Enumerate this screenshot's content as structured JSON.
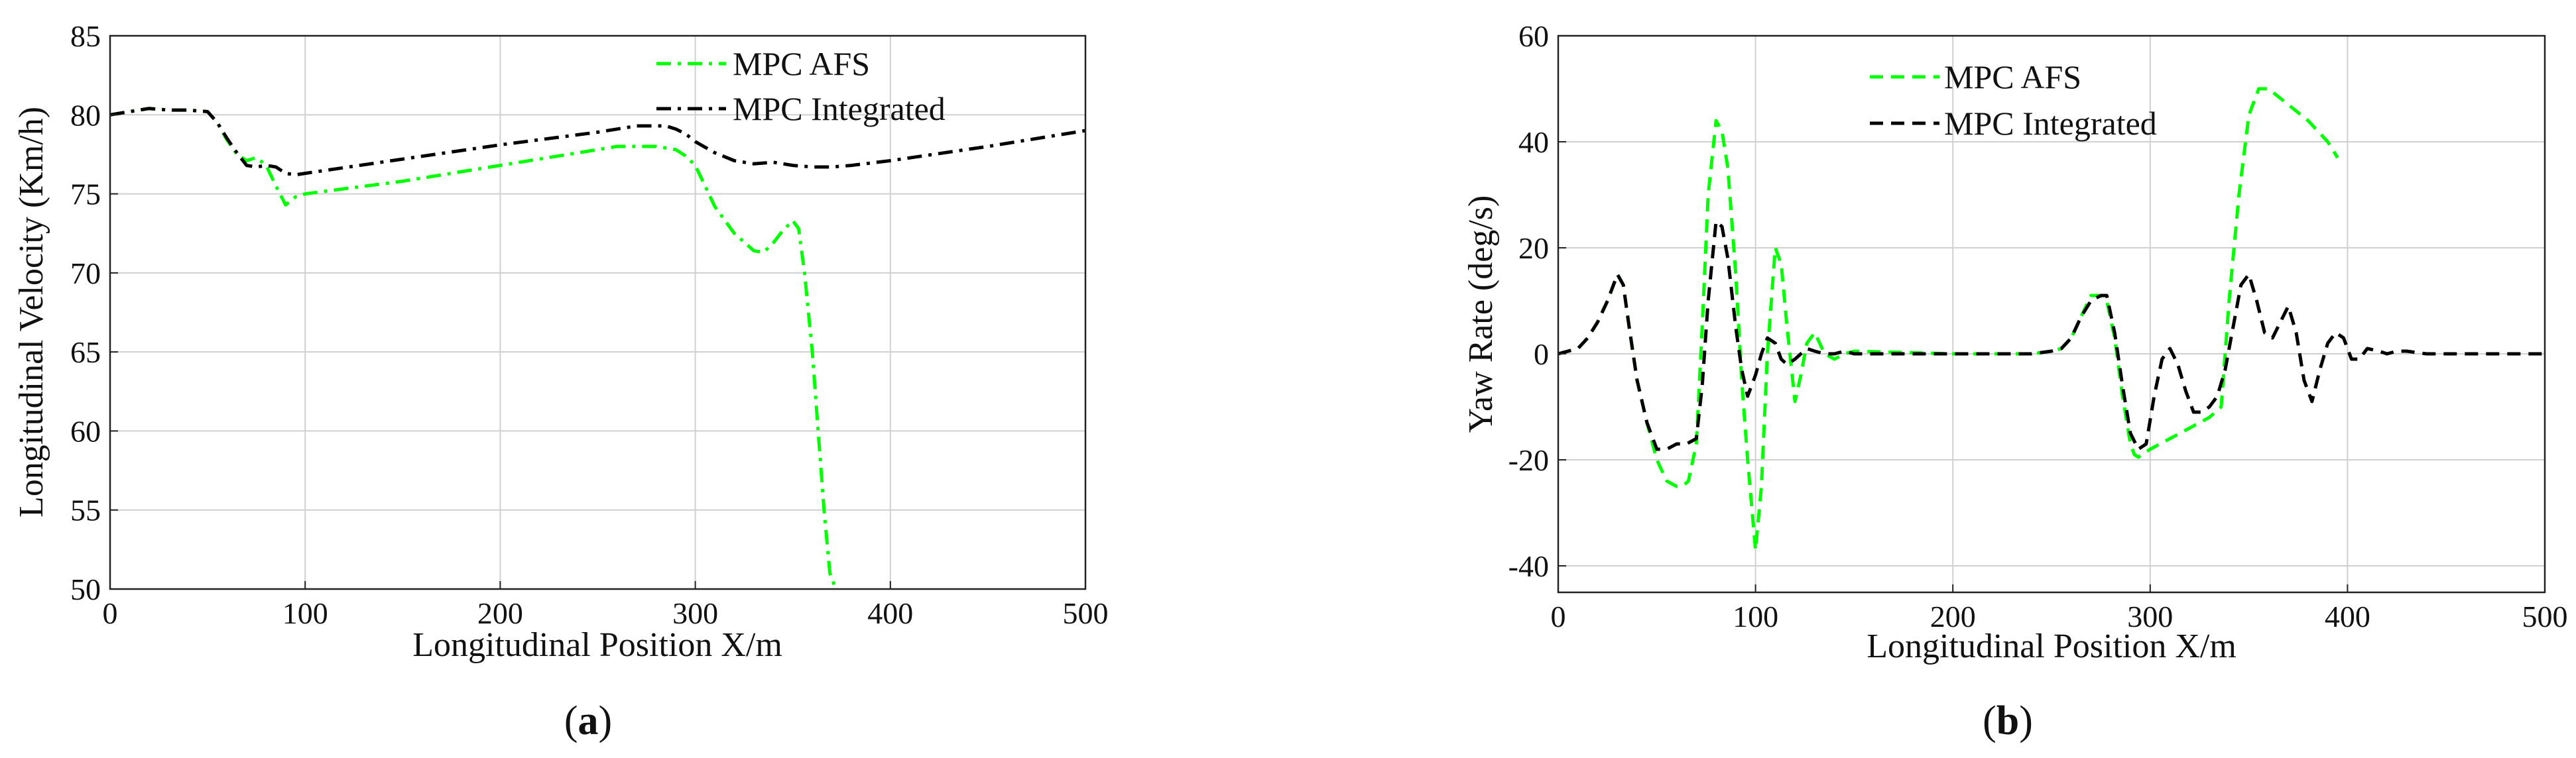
{
  "chart_data": [
    {
      "type": "line",
      "panel_label": "a",
      "xlabel": "Longitudinal Position X/m",
      "ylabel": "Longitudinal Velocity (Km/h)",
      "xlim": [
        0,
        500
      ],
      "ylim": [
        50,
        85
      ],
      "xticks": [
        0,
        100,
        200,
        300,
        400,
        500
      ],
      "yticks": [
        50,
        55,
        60,
        65,
        70,
        75,
        80,
        85
      ],
      "grid": true,
      "legend_position": "top-right",
      "series": [
        {
          "name": "MPC AFS",
          "color": "#00ff00",
          "dash": "dash-dot",
          "x": [
            0,
            10,
            20,
            30,
            40,
            50,
            55,
            60,
            65,
            70,
            75,
            80,
            85,
            90,
            95,
            100,
            150,
            200,
            250,
            260,
            270,
            280,
            290,
            295,
            300,
            305,
            310,
            320,
            330,
            335,
            340,
            345,
            350,
            353,
            356,
            360,
            363,
            366,
            369,
            372
          ],
          "y": [
            80,
            80.2,
            80.4,
            80.3,
            80.3,
            80.2,
            79.5,
            78.4,
            77.5,
            77.1,
            77.3,
            76.8,
            75.5,
            74.3,
            74.8,
            75,
            75.8,
            76.8,
            77.8,
            78,
            78,
            78,
            77.8,
            77.4,
            76.8,
            75.5,
            74.2,
            72.5,
            71.4,
            71.3,
            71.9,
            72.7,
            73.3,
            72.8,
            70,
            65,
            60,
            55,
            51,
            50
          ]
        },
        {
          "name": "MPC Integrated",
          "color": "#000000",
          "dash": "dash-dot",
          "x": [
            0,
            10,
            20,
            30,
            40,
            50,
            55,
            60,
            65,
            70,
            75,
            80,
            85,
            90,
            95,
            100,
            150,
            200,
            250,
            270,
            285,
            290,
            295,
            300,
            310,
            320,
            330,
            340,
            350,
            360,
            370,
            380,
            400,
            450,
            500
          ],
          "y": [
            80,
            80.2,
            80.4,
            80.3,
            80.3,
            80.2,
            79.5,
            78.5,
            77.6,
            76.8,
            76.7,
            76.8,
            76.7,
            76.3,
            76.2,
            76.3,
            77.2,
            78.1,
            78.9,
            79.3,
            79.3,
            79.1,
            78.8,
            78.3,
            77.6,
            77.1,
            76.9,
            77,
            76.8,
            76.7,
            76.7,
            76.8,
            77.1,
            78,
            79
          ]
        }
      ]
    },
    {
      "type": "line",
      "panel_label": "b",
      "xlabel": "Longitudinal Position X/m",
      "ylabel": "Yaw Rate (deg/s)",
      "xlim": [
        0,
        500
      ],
      "ylim": [
        -45,
        60
      ],
      "xticks": [
        0,
        100,
        200,
        300,
        400,
        500
      ],
      "yticks": [
        -40,
        -20,
        0,
        20,
        40,
        60
      ],
      "grid": true,
      "legend_position": "top-center",
      "series": [
        {
          "name": "MPC AFS",
          "color": "#00ff00",
          "dash": "dashed",
          "x": [
            0,
            10,
            15,
            20,
            25,
            30,
            33,
            36,
            40,
            45,
            50,
            55,
            60,
            63,
            66,
            70,
            73,
            76,
            80,
            83,
            86,
            90,
            93,
            96,
            100,
            103,
            106,
            110,
            113,
            116,
            120,
            123,
            126,
            130,
            135,
            140,
            145,
            150,
            200,
            240,
            250,
            255,
            260,
            265,
            270,
            275,
            278,
            282,
            286,
            290,
            292,
            294,
            300,
            310,
            320,
            330,
            336,
            340,
            345,
            350,
            355,
            360,
            370,
            380,
            390,
            395
          ],
          "y": [
            0,
            1,
            3,
            6,
            10,
            15,
            13,
            5,
            -5,
            -13,
            -20,
            -24,
            -25,
            -25,
            -24,
            -17,
            5,
            30,
            44,
            42,
            35,
            15,
            -5,
            -20,
            -37,
            -25,
            0,
            20,
            17,
            5,
            -9,
            -4,
            2,
            4,
            0,
            -1,
            0,
            0.5,
            0,
            0,
            0.5,
            1,
            3,
            7,
            11,
            11,
            10,
            3,
            -8,
            -17,
            -19,
            -19.5,
            -18,
            -16,
            -14,
            -12,
            -10,
            10,
            30,
            45,
            50,
            50,
            47,
            44,
            40,
            37
          ]
        },
        {
          "name": "MPC Integrated",
          "color": "#000000",
          "dash": "dashed",
          "x": [
            0,
            10,
            15,
            20,
            25,
            30,
            33,
            36,
            40,
            45,
            50,
            55,
            60,
            65,
            70,
            73,
            76,
            80,
            83,
            86,
            90,
            93,
            96,
            100,
            103,
            106,
            110,
            113,
            116,
            120,
            123,
            126,
            130,
            135,
            140,
            145,
            150,
            200,
            240,
            250,
            255,
            260,
            265,
            270,
            275,
            278,
            282,
            286,
            290,
            294,
            298,
            302,
            306,
            310,
            314,
            318,
            322,
            326,
            330,
            334,
            338,
            342,
            346,
            350,
            354,
            358,
            362,
            366,
            370,
            374,
            378,
            382,
            386,
            390,
            394,
            398,
            402,
            406,
            410,
            416,
            420,
            425,
            430,
            440,
            450,
            500
          ],
          "y": [
            0,
            1,
            3,
            6,
            10,
            15,
            13,
            5,
            -5,
            -13,
            -18,
            -18,
            -17,
            -17,
            -16,
            -6,
            10,
            25,
            24,
            18,
            5,
            -3,
            -8,
            -4,
            0,
            3,
            2,
            -1,
            -2,
            -1,
            0,
            1,
            0.5,
            0,
            0,
            0.5,
            0,
            0,
            0,
            0.5,
            1,
            3,
            7,
            10,
            11,
            11,
            4,
            -6,
            -15,
            -18,
            -17,
            -8,
            -1,
            1,
            -2,
            -7,
            -11,
            -11,
            -10,
            -8,
            -3,
            5,
            13,
            15,
            10,
            4,
            3,
            6,
            9,
            4,
            -5,
            -9,
            -3,
            2,
            4,
            3,
            -1,
            -1,
            1,
            0.5,
            0,
            0.5,
            0.5,
            0,
            0,
            0
          ]
        }
      ]
    }
  ]
}
